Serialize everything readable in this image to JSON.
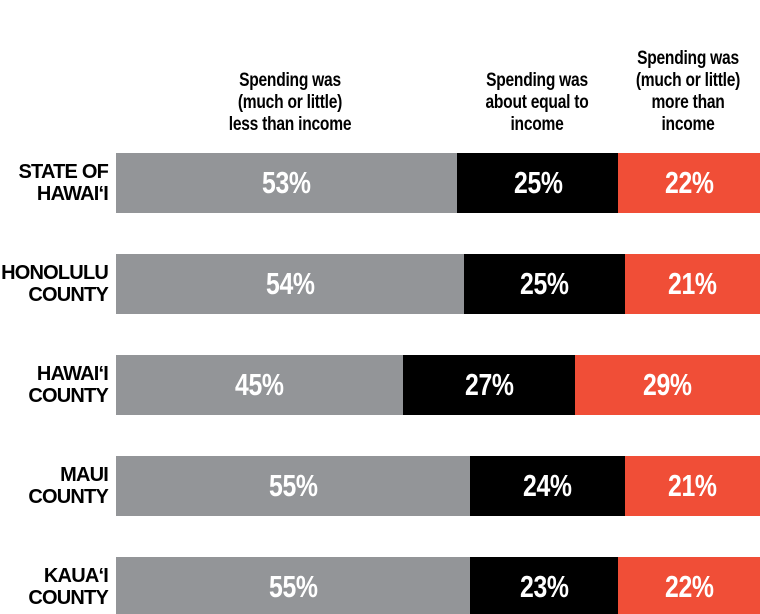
{
  "chart_data": {
    "type": "bar",
    "orientation": "horizontal",
    "stacked": true,
    "categories": [
      "STATE OF\nHAWAI‘I",
      "HONOLULU\nCOUNTY",
      "HAWAI‘I\nCOUNTY",
      "MAUI\nCOUNTY",
      "KAUA‘I\nCOUNTY"
    ],
    "series": [
      {
        "name": "Spending was\n(much or little)\nless than income",
        "color": "#939598",
        "values": [
          53,
          54,
          45,
          55,
          55
        ],
        "value_labels": [
          "53%",
          "54%",
          "45%",
          "55%",
          "55%"
        ]
      },
      {
        "name": "Spending was\nabout equal to\nincome",
        "color": "#000000",
        "values": [
          25,
          25,
          27,
          24,
          23
        ],
        "value_labels": [
          "25%",
          "25%",
          "27%",
          "24%",
          "23%"
        ]
      },
      {
        "name": "Spending was\n(much or little)\nmore than\nincome",
        "color": "#f04e37",
        "values": [
          22,
          21,
          29,
          21,
          22
        ],
        "value_labels": [
          "22%",
          "21%",
          "29%",
          "21%",
          "22%"
        ]
      }
    ]
  }
}
